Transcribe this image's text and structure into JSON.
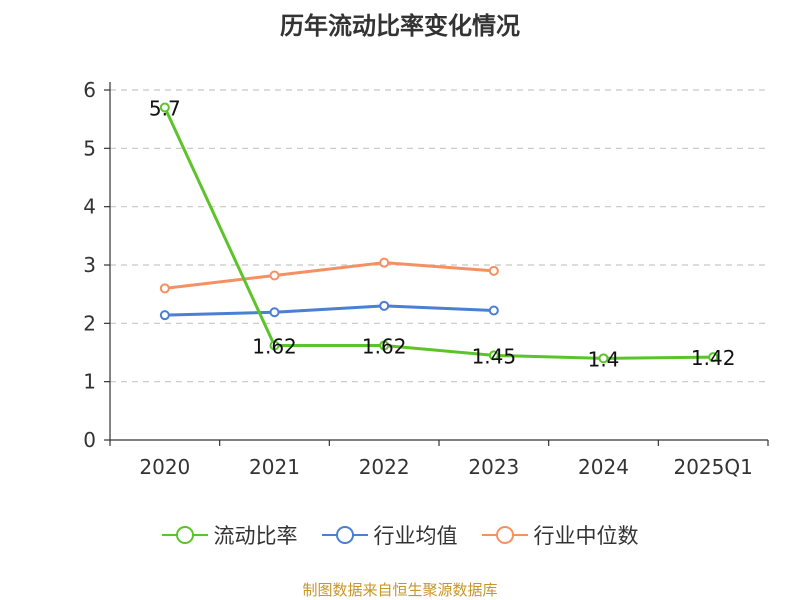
{
  "chart_data": {
    "type": "line",
    "title": "历年流动比率变化情况",
    "categories": [
      "2020",
      "2021",
      "2022",
      "2023",
      "2024",
      "2025Q1"
    ],
    "ylim": [
      0,
      6
    ],
    "yticks": [
      0,
      1,
      2,
      3,
      4,
      5,
      6
    ],
    "grid": true,
    "legend_position": "bottom",
    "series": [
      {
        "name": "流动比率",
        "color": "#5cc42a",
        "values": [
          5.7,
          1.62,
          1.62,
          1.45,
          1.4,
          1.42
        ],
        "labels": [
          "5.7",
          "1.62",
          "1.62",
          "1.45",
          "1.4",
          "1.42"
        ]
      },
      {
        "name": "行业均值",
        "color": "#4a7fd4",
        "values": [
          2.14,
          2.19,
          2.3,
          2.22,
          null,
          null
        ]
      },
      {
        "name": "行业中位数",
        "color": "#f59062",
        "values": [
          2.6,
          2.82,
          3.04,
          2.9,
          null,
          null
        ]
      }
    ],
    "source": "制图数据来自恒生聚源数据库"
  }
}
